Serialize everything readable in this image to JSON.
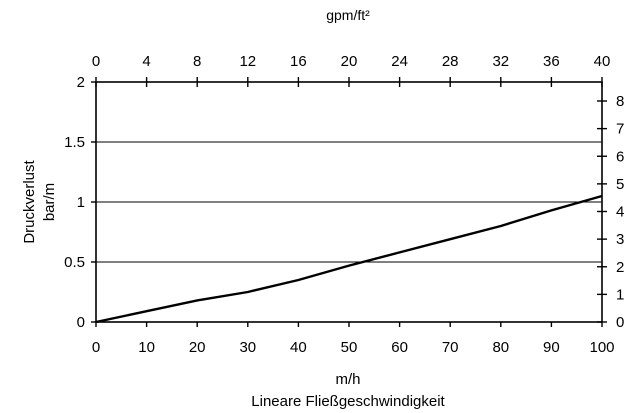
{
  "chart_data": {
    "type": "line",
    "x": [
      0,
      10,
      20,
      30,
      40,
      50,
      60,
      70,
      80,
      90,
      100
    ],
    "series": [
      {
        "values": [
          0,
          0.09,
          0.18,
          0.25,
          0.35,
          0.47,
          0.58,
          0.69,
          0.8,
          0.93,
          1.05
        ]
      }
    ],
    "xlim": [
      0,
      100
    ],
    "ylim": [
      0,
      2
    ],
    "x_ticks": [
      "0",
      "10",
      "20",
      "30",
      "40",
      "50",
      "60",
      "70",
      "80",
      "90",
      "100"
    ],
    "y_ticks": [
      "0",
      "0.5",
      "1",
      "1.5",
      "2"
    ],
    "top_ticks": [
      "0",
      "4",
      "8",
      "12",
      "16",
      "20",
      "24",
      "28",
      "32",
      "36",
      "40"
    ],
    "right_ticks": [
      "0",
      "1",
      "2",
      "3",
      "4",
      "5",
      "6",
      "7",
      "8"
    ],
    "top_axis_range": [
      0,
      40
    ],
    "right_axis_range": [
      0,
      8
    ],
    "grid": "horizontal",
    "xlabel_unit": "m/h",
    "xlabel": "Lineare Fließgeschwindigkeit",
    "top_unit": "gpm/ft²",
    "ylabel_line1": "Druckverlust",
    "ylabel_line2": "bar/m"
  }
}
